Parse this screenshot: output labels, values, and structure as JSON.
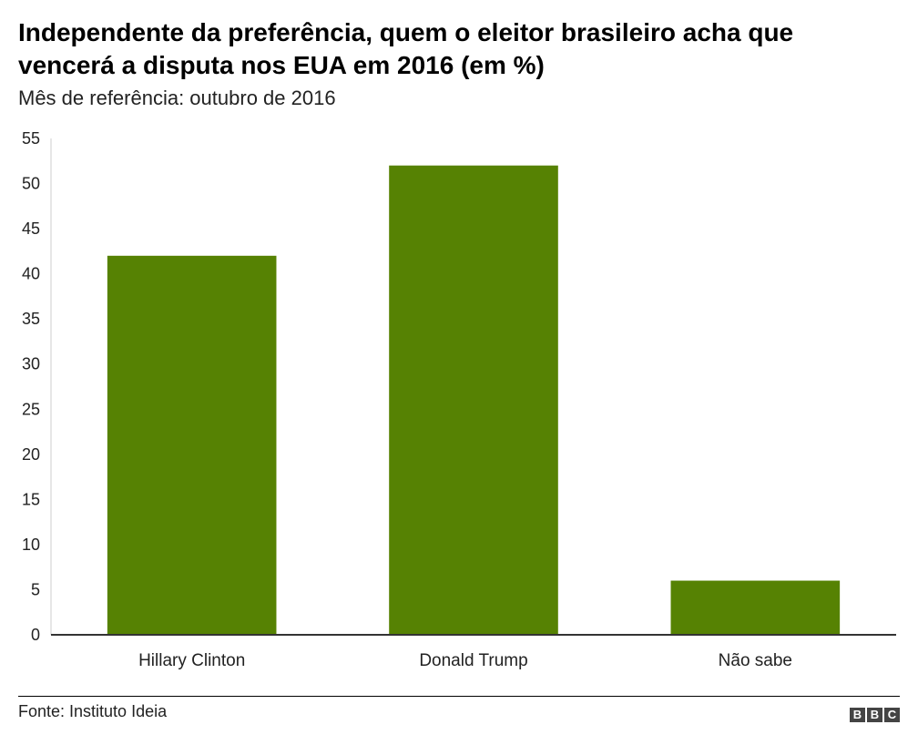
{
  "header": {
    "title": "Independente da preferência, quem o eleitor brasileiro acha que vencerá a disputa nos EUA em 2016 (em %)",
    "subtitle": "Mês de referência: outubro de 2016"
  },
  "footer": {
    "source": "Fonte: Instituto Ideia",
    "logo_letters": [
      "B",
      "B",
      "C"
    ]
  },
  "colors": {
    "bar": "#568203",
    "axis": "#333333",
    "text": "#000000"
  },
  "chart_data": {
    "type": "bar",
    "title": "Independente da preferência, quem o eleitor brasileiro acha que vencerá a disputa nos EUA em 2016 (em %)",
    "subtitle": "Mês de referência: outubro de 2016",
    "categories": [
      "Hillary Clinton",
      "Donald Trump",
      "Não sabe"
    ],
    "values": [
      42,
      52,
      6
    ],
    "ylim": [
      0,
      55
    ],
    "yticks": [
      0,
      5,
      10,
      15,
      20,
      25,
      30,
      35,
      40,
      45,
      50,
      55
    ],
    "xlabel": "",
    "ylabel": "",
    "grid": false,
    "legend": "none"
  }
}
